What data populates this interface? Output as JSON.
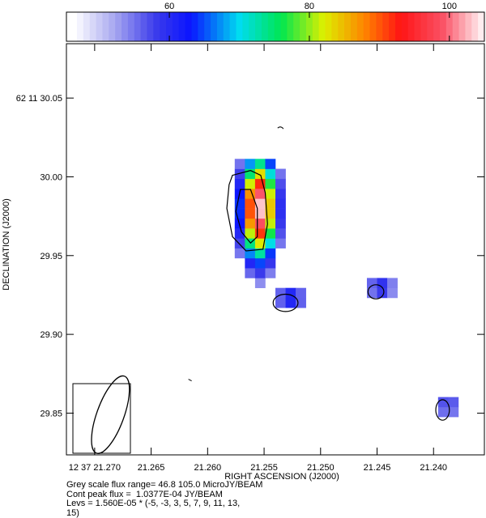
{
  "chart_data": {
    "type": "heatmap",
    "colorbar": {
      "range": [
        46.8,
        105.0
      ],
      "ticks": [
        60,
        80,
        100
      ],
      "tick_labels": [
        "60",
        "80",
        "100"
      ]
    },
    "xlabel": "RIGHT ASCENSION (J2000)",
    "ylabel": "DECLINATION (J2000)",
    "xlim": [
      21.2725,
      21.2355
    ],
    "ylim": [
      29.8235,
      30.0845
    ],
    "x_ticks": [
      21.27,
      21.265,
      21.26,
      21.255,
      21.25,
      21.245,
      21.24
    ],
    "x_tick_labels": [
      "12 37 21.270",
      "21.265",
      "21.260",
      "21.255",
      "21.250",
      "21.245",
      "21.240"
    ],
    "y_ticks": [
      30.05,
      30.0,
      29.95,
      29.9,
      29.85
    ],
    "y_tick_labels": [
      "62 11 30.05",
      "30.00",
      "29.95",
      "29.90",
      "29.85"
    ],
    "grid": false,
    "sources": [
      {
        "ra": 21.2559,
        "dec": 29.977,
        "peak_flux": 103.8,
        "components": "main"
      },
      {
        "ra": 21.2531,
        "dec": 29.92,
        "peak_flux": 62
      },
      {
        "ra": 21.2451,
        "dec": 29.927,
        "peak_flux": 60
      },
      {
        "ra": 21.2392,
        "dec": 29.852,
        "peak_flux": 58
      }
    ],
    "beam": {
      "ra": 21.2686,
      "dec": 29.849,
      "major": 0.026,
      "minor": 0.018,
      "pa_deg": 20
    }
  },
  "footer": {
    "line1": "Grey scale flux range= 46.8 105.0 MicroJY/BEAM",
    "line2": "Cont peak flux =  1.0377E-04 JY/BEAM",
    "line3": "Levs = 1.560E-05 * (-5, -3, 3, 5, 7, 9, 11, 13,",
    "line4": "15)"
  }
}
